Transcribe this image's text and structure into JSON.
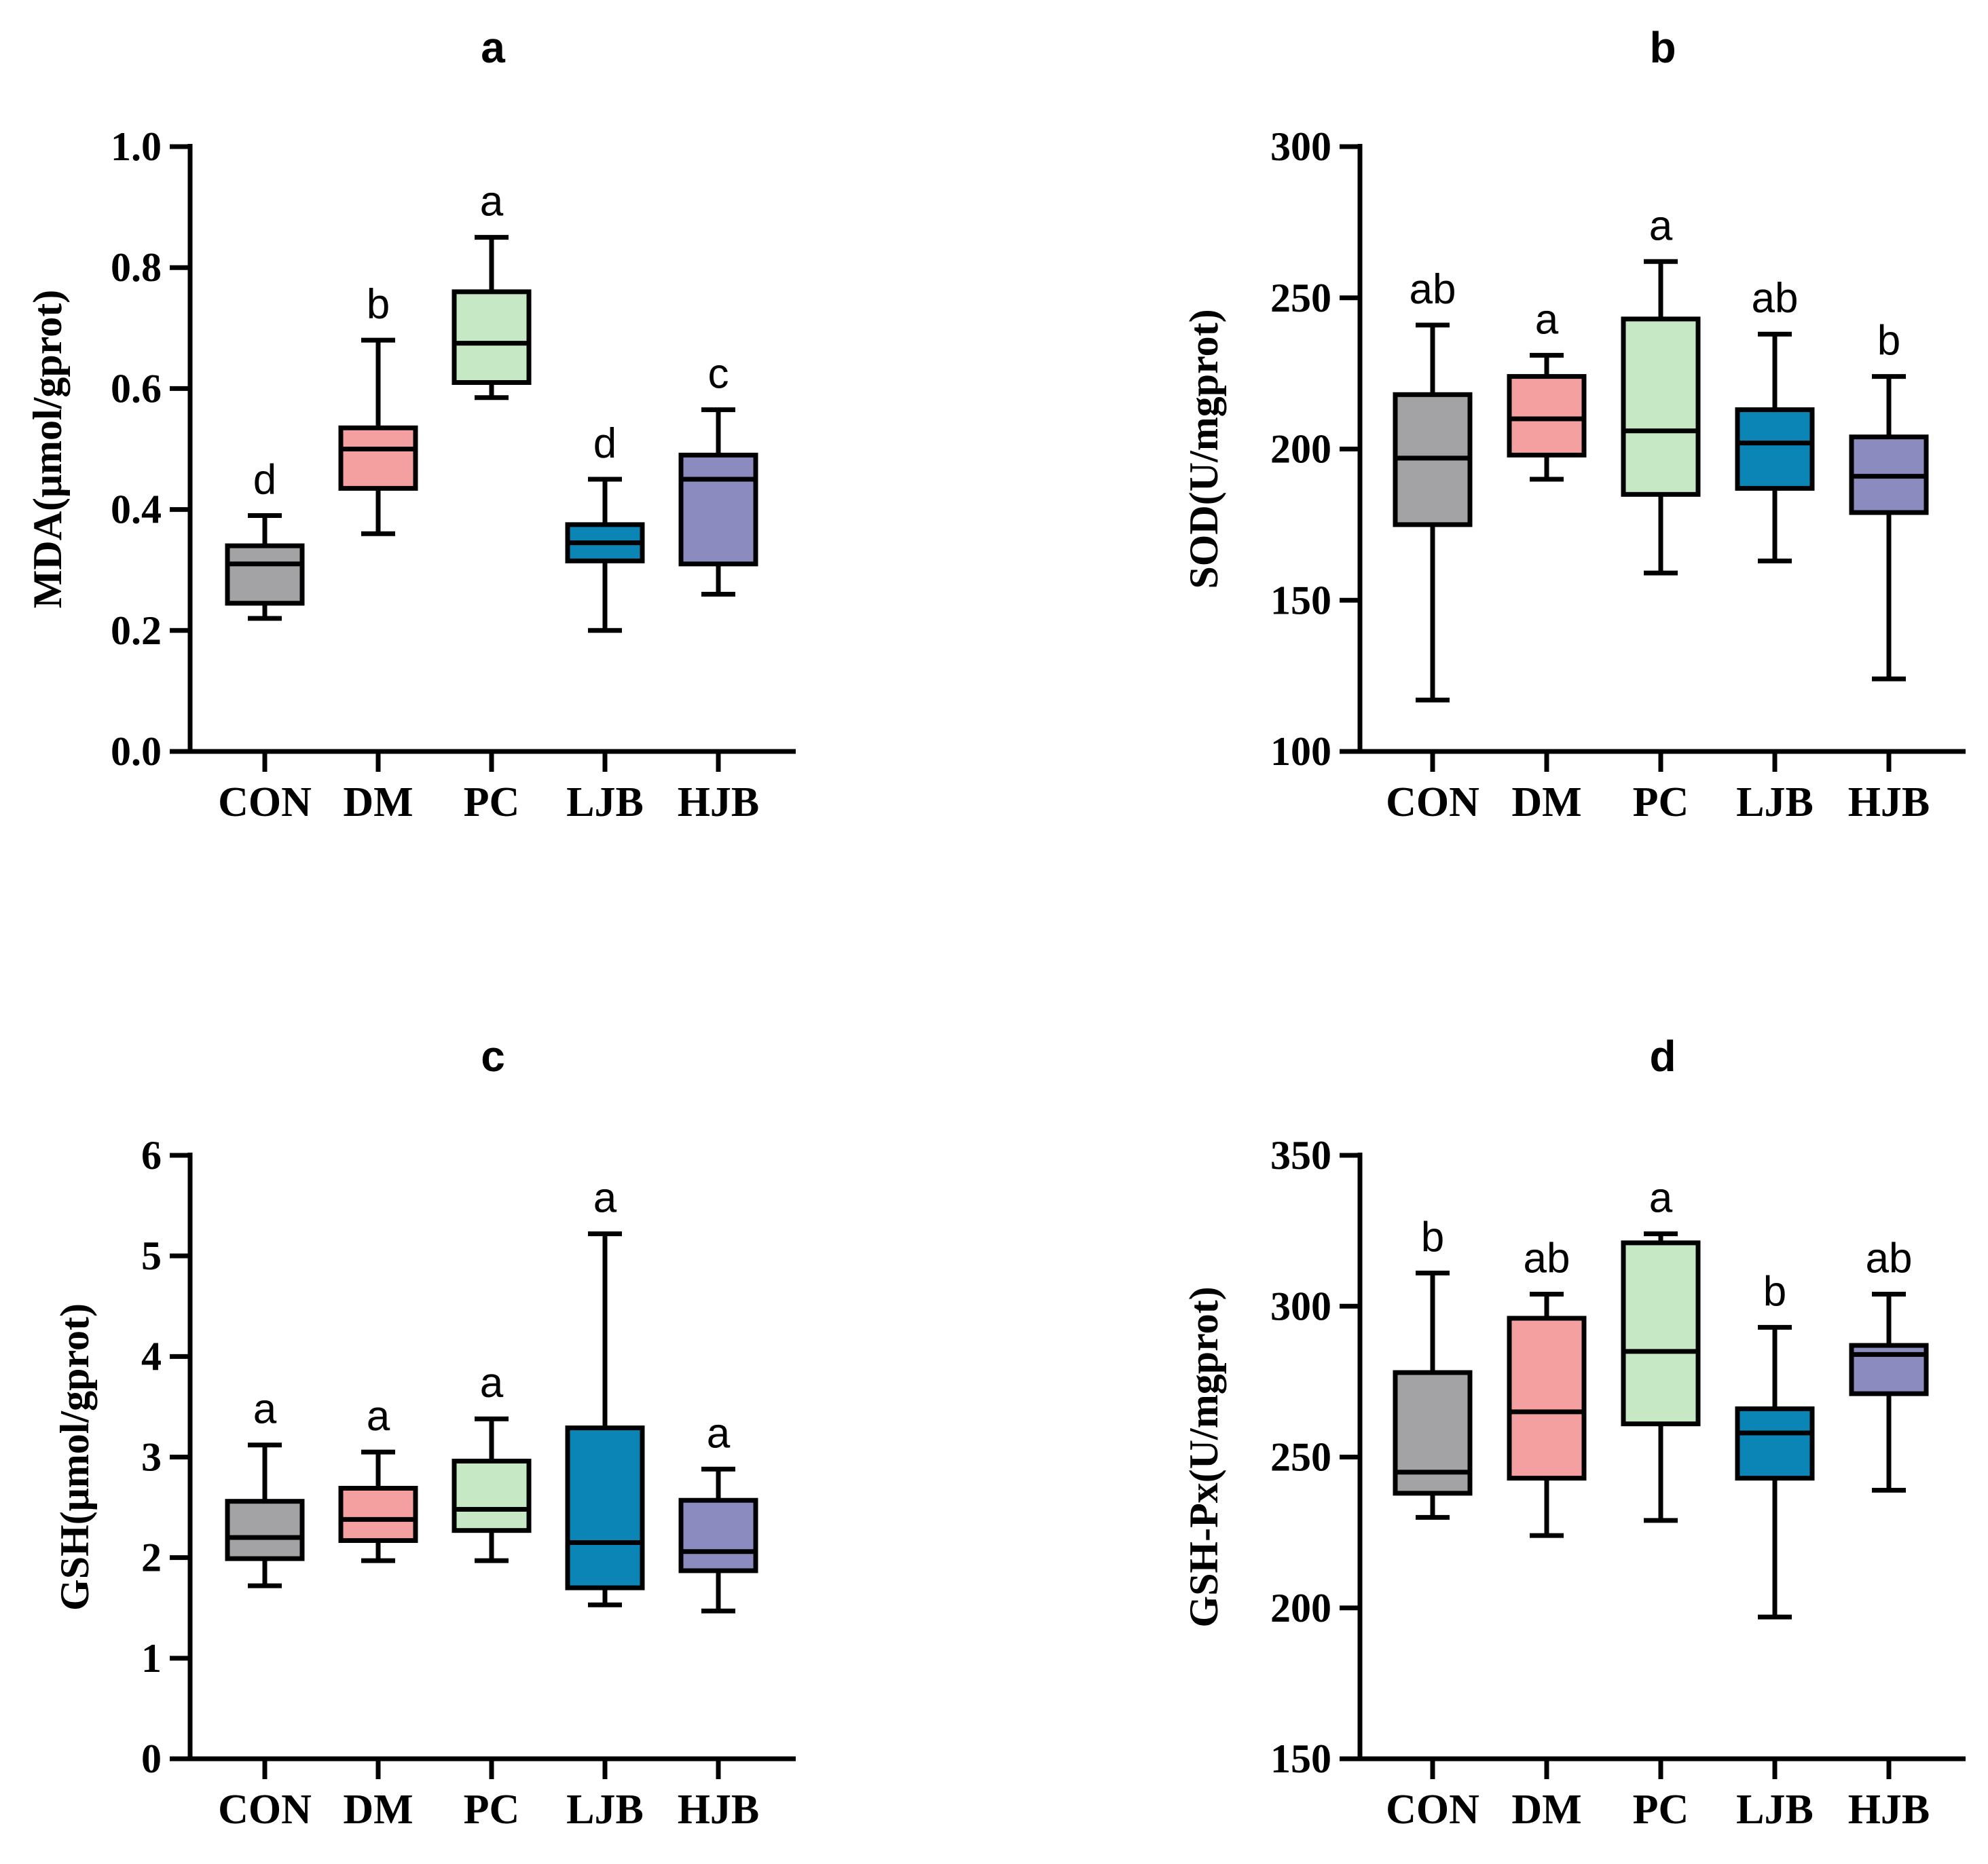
{
  "colors": {
    "CON": "#a3a3a5",
    "DM": "#f5a0a0",
    "PC": "#c6e8c4",
    "LJB": "#0a85b6",
    "HJB": "#8b8bc0",
    "outline": "#000000"
  },
  "chart_data": [
    {
      "type": "box",
      "title": "a",
      "ylabel": "MDA(μmol/gprot)",
      "ylim": [
        0.0,
        1.0
      ],
      "yticks": [
        0.0,
        0.2,
        0.4,
        0.6,
        0.8,
        1.0
      ],
      "ytick_labels": [
        "0.0",
        "0.2",
        "0.4",
        "0.6",
        "0.8",
        "1.0"
      ],
      "categories": [
        "CON",
        "DM",
        "PC",
        "LJB",
        "HJB"
      ],
      "boxes": [
        {
          "min": 0.22,
          "q1": 0.245,
          "median": 0.31,
          "q3": 0.34,
          "max": 0.39,
          "sig": "d"
        },
        {
          "min": 0.36,
          "q1": 0.435,
          "median": 0.5,
          "q3": 0.535,
          "max": 0.68,
          "sig": "b"
        },
        {
          "min": 0.585,
          "q1": 0.61,
          "median": 0.675,
          "q3": 0.76,
          "max": 0.85,
          "sig": "a"
        },
        {
          "min": 0.2,
          "q1": 0.315,
          "median": 0.345,
          "q3": 0.375,
          "max": 0.45,
          "sig": "d"
        },
        {
          "min": 0.26,
          "q1": 0.31,
          "median": 0.45,
          "q3": 0.49,
          "max": 0.565,
          "sig": "c"
        }
      ]
    },
    {
      "type": "box",
      "title": "b",
      "ylabel": "SOD(U/mgprot)",
      "ylim": [
        100,
        300
      ],
      "yticks": [
        100,
        150,
        200,
        250,
        300
      ],
      "ytick_labels": [
        "100",
        "150",
        "200",
        "250",
        "300"
      ],
      "categories": [
        "CON",
        "DM",
        "PC",
        "LJB",
        "HJB"
      ],
      "boxes": [
        {
          "min": 117,
          "q1": 175,
          "median": 197,
          "q3": 218,
          "max": 241,
          "sig": "ab"
        },
        {
          "min": 190,
          "q1": 198,
          "median": 210,
          "q3": 224,
          "max": 231,
          "sig": "a"
        },
        {
          "min": 159,
          "q1": 185,
          "median": 206,
          "q3": 243,
          "max": 262,
          "sig": "a"
        },
        {
          "min": 163,
          "q1": 187,
          "median": 202,
          "q3": 213,
          "max": 238,
          "sig": "ab"
        },
        {
          "min": 124,
          "q1": 179,
          "median": 191,
          "q3": 204,
          "max": 224,
          "sig": "b"
        }
      ]
    },
    {
      "type": "box",
      "title": "c",
      "ylabel": "GSH(μmol/gprot)",
      "ylim": [
        0,
        6
      ],
      "yticks": [
        0,
        1,
        2,
        3,
        4,
        5,
        6
      ],
      "ytick_labels": [
        "0",
        "1",
        "2",
        "3",
        "4",
        "5",
        "6"
      ],
      "categories": [
        "CON",
        "DM",
        "PC",
        "LJB",
        "HJB"
      ],
      "boxes": [
        {
          "min": 1.72,
          "q1": 1.99,
          "median": 2.2,
          "q3": 2.56,
          "max": 3.12,
          "sig": "a"
        },
        {
          "min": 1.97,
          "q1": 2.17,
          "median": 2.38,
          "q3": 2.69,
          "max": 3.05,
          "sig": "a"
        },
        {
          "min": 1.97,
          "q1": 2.27,
          "median": 2.48,
          "q3": 2.96,
          "max": 3.38,
          "sig": "a"
        },
        {
          "min": 1.53,
          "q1": 1.7,
          "median": 2.15,
          "q3": 3.29,
          "max": 5.22,
          "sig": "a"
        },
        {
          "min": 1.47,
          "q1": 1.87,
          "median": 2.06,
          "q3": 2.57,
          "max": 2.88,
          "sig": "a"
        }
      ]
    },
    {
      "type": "box",
      "title": "d",
      "ylabel": "GSH-Px(U/mgprot)",
      "ylim": [
        150,
        350
      ],
      "yticks": [
        150,
        200,
        250,
        300,
        350
      ],
      "ytick_labels": [
        "150",
        "200",
        "250",
        "300",
        "350"
      ],
      "categories": [
        "CON",
        "DM",
        "PC",
        "LJB",
        "HJB"
      ],
      "boxes": [
        {
          "min": 230,
          "q1": 238,
          "median": 245,
          "q3": 278,
          "max": 311,
          "sig": "b"
        },
        {
          "min": 224,
          "q1": 243,
          "median": 265,
          "q3": 296,
          "max": 304,
          "sig": "ab"
        },
        {
          "min": 229,
          "q1": 261,
          "median": 285,
          "q3": 321,
          "max": 324,
          "sig": "a"
        },
        {
          "min": 197,
          "q1": 243,
          "median": 258,
          "q3": 266,
          "max": 293,
          "sig": "b"
        },
        {
          "min": 239,
          "q1": 271,
          "median": 284,
          "q3": 287,
          "max": 304,
          "sig": "ab"
        }
      ]
    }
  ]
}
